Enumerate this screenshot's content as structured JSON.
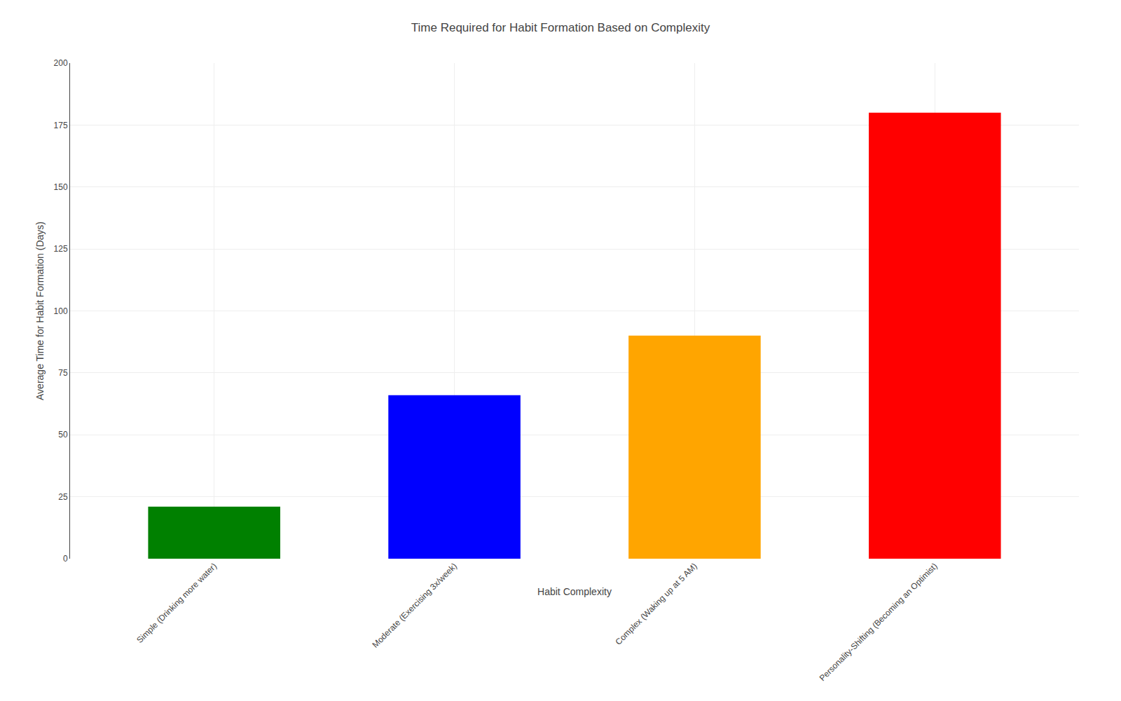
{
  "chart_data": {
    "type": "bar",
    "title": "Time Required for Habit Formation Based on Complexity",
    "xlabel": "Habit Complexity",
    "ylabel": "Average Time for Habit Formation (Days)",
    "categories": [
      "Simple (Drinking more water)",
      "Moderate (Exercising 3x/week)",
      "Complex (Waking up at 5 AM)",
      "Personality-Shifting (Becoming an Optimist)"
    ],
    "values": [
      21,
      66,
      90,
      180
    ],
    "colors": [
      "#008000",
      "#0000FF",
      "#FFA500",
      "#FF0000"
    ],
    "ylim": [
      0,
      200
    ],
    "yticks": [
      0,
      25,
      50,
      75,
      100,
      125,
      150,
      175,
      200
    ],
    "grid": true
  }
}
